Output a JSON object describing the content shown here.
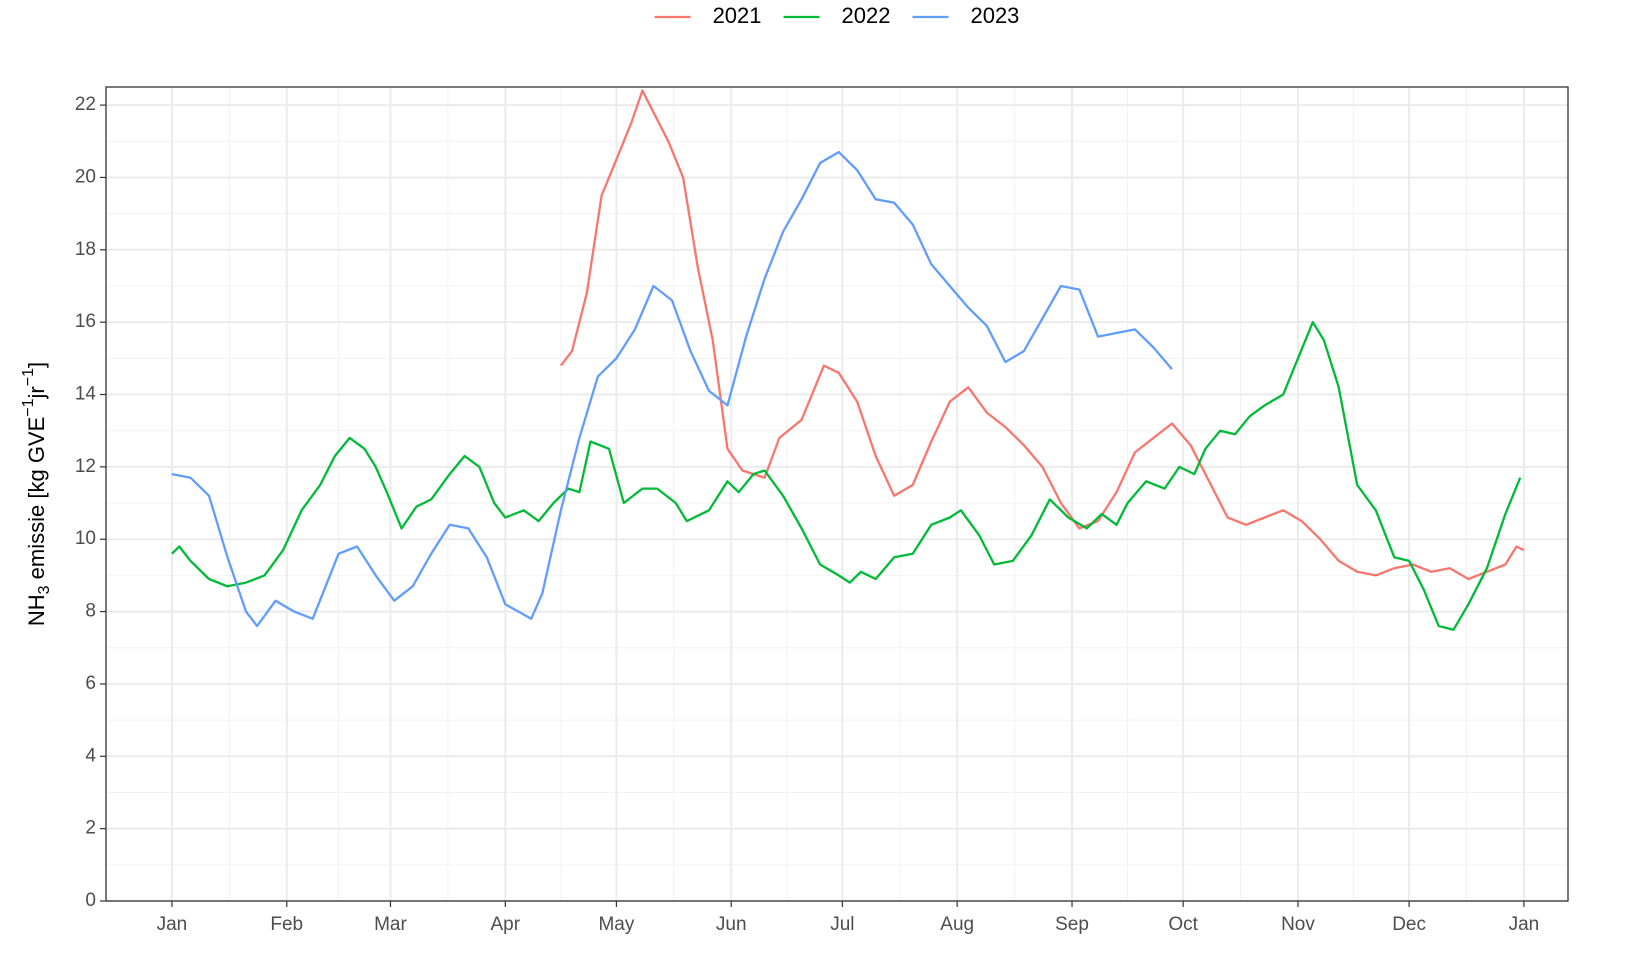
{
  "chart_data": {
    "type": "line",
    "y_label_parts": [
      "NH",
      "3",
      " emissie [kg GVE",
      "−1",
      "jr",
      "−1",
      "]"
    ],
    "xlim": [
      -17.8,
      376.9
    ],
    "xticks": [
      {
        "value": 0,
        "label": "Jan"
      },
      {
        "value": 31,
        "label": "Feb"
      },
      {
        "value": 59,
        "label": "Mar"
      },
      {
        "value": 90,
        "label": "Apr"
      },
      {
        "value": 120,
        "label": "May"
      },
      {
        "value": 151,
        "label": "Jun"
      },
      {
        "value": 181,
        "label": "Jul"
      },
      {
        "value": 212,
        "label": "Aug"
      },
      {
        "value": 243,
        "label": "Sep"
      },
      {
        "value": 273,
        "label": "Oct"
      },
      {
        "value": 304,
        "label": "Nov"
      },
      {
        "value": 334,
        "label": "Dec"
      },
      {
        "value": 365,
        "label": "Jan"
      }
    ],
    "ylim": [
      0,
      22.5
    ],
    "yticks": [
      0,
      2,
      4,
      6,
      8,
      10,
      12,
      14,
      16,
      18,
      20,
      22
    ],
    "grid": true,
    "legend": "top",
    "series": [
      {
        "name": "2021",
        "color": "#f8766d",
        "x": [
          105,
          108,
          112,
          116,
          120,
          124,
          127,
          130,
          134,
          138,
          142,
          146,
          150,
          154,
          160,
          164,
          170,
          176,
          180,
          185,
          190,
          195,
          200,
          205,
          210,
          215,
          220,
          225,
          230,
          235,
          240,
          245,
          250,
          255,
          260,
          265,
          270,
          275,
          280,
          285,
          290,
          295,
          300,
          305,
          310,
          315,
          320,
          325,
          330,
          335,
          340,
          345,
          350,
          355,
          360,
          363,
          365
        ],
        "values": [
          14.8,
          15.2,
          16.8,
          19.5,
          20.5,
          21.5,
          22.4,
          21.8,
          21.0,
          20.0,
          17.5,
          15.5,
          12.5,
          11.9,
          11.7,
          12.8,
          13.3,
          14.8,
          14.6,
          13.8,
          12.3,
          11.2,
          11.5,
          12.7,
          13.8,
          14.2,
          13.5,
          13.1,
          12.6,
          12.0,
          11.0,
          10.3,
          10.5,
          11.3,
          12.4,
          12.8,
          13.2,
          12.6,
          11.6,
          10.6,
          10.4,
          10.6,
          10.8,
          10.5,
          10.0,
          9.4,
          9.1,
          9.0,
          9.2,
          9.3,
          9.1,
          9.2,
          8.9,
          9.1,
          9.3,
          9.8,
          9.7
        ]
      },
      {
        "name": "2022",
        "color": "#00ba38",
        "x": [
          0,
          2,
          5,
          10,
          15,
          20,
          25,
          30,
          35,
          40,
          44,
          48,
          52,
          55,
          58,
          62,
          66,
          70,
          75,
          79,
          83,
          87,
          90,
          95,
          99,
          103,
          107,
          110,
          113,
          118,
          122,
          127,
          131,
          136,
          139,
          145,
          150,
          153,
          157,
          160,
          165,
          170,
          175,
          180,
          183,
          186,
          190,
          195,
          200,
          205,
          210,
          213,
          218,
          222,
          227,
          232,
          237,
          242,
          247,
          251,
          255,
          258,
          263,
          268,
          272,
          276,
          279,
          283,
          287,
          291,
          295,
          300,
          304,
          308,
          311,
          315,
          320,
          325,
          330,
          334,
          338,
          342,
          346,
          350,
          355,
          360,
          364
        ],
        "values": [
          9.6,
          9.8,
          9.4,
          8.9,
          8.7,
          8.8,
          9.0,
          9.7,
          10.8,
          11.5,
          12.3,
          12.8,
          12.5,
          12.0,
          11.3,
          10.3,
          10.9,
          11.1,
          11.8,
          12.3,
          12.0,
          11.0,
          10.6,
          10.8,
          10.5,
          11.0,
          11.4,
          11.3,
          12.7,
          12.5,
          11.0,
          11.4,
          11.4,
          11.0,
          10.5,
          10.8,
          11.6,
          11.3,
          11.8,
          11.9,
          11.2,
          10.3,
          9.3,
          9.0,
          8.8,
          9.1,
          8.9,
          9.5,
          9.6,
          10.4,
          10.6,
          10.8,
          10.1,
          9.3,
          9.4,
          10.1,
          11.1,
          10.6,
          10.3,
          10.7,
          10.4,
          11.0,
          11.6,
          11.4,
          12.0,
          11.8,
          12.5,
          13.0,
          12.9,
          13.4,
          13.7,
          14.0,
          15.0,
          16.0,
          15.5,
          14.2,
          11.5,
          10.8,
          9.5,
          9.4,
          8.6,
          7.6,
          7.5,
          8.2,
          9.2,
          10.7,
          11.7
        ]
      },
      {
        "name": "2023",
        "color": "#619cff",
        "x": [
          0,
          5,
          10,
          15,
          20,
          23,
          28,
          33,
          38,
          45,
          50,
          55,
          60,
          65,
          70,
          75,
          80,
          85,
          90,
          97,
          100,
          105,
          110,
          115,
          120,
          125,
          130,
          135,
          140,
          145,
          150,
          155,
          160,
          165,
          170,
          175,
          180,
          185,
          190,
          195,
          200,
          205,
          210,
          215,
          220,
          225,
          230,
          235,
          240,
          245,
          250,
          255,
          260,
          265,
          270
        ],
        "values": [
          11.8,
          11.7,
          11.2,
          9.5,
          8.0,
          7.6,
          8.3,
          8.0,
          7.8,
          9.6,
          9.8,
          9.0,
          8.3,
          8.7,
          9.6,
          10.4,
          10.3,
          9.5,
          8.2,
          7.8,
          8.5,
          10.8,
          12.8,
          14.5,
          15.0,
          15.8,
          17.0,
          16.6,
          15.2,
          14.1,
          13.7,
          15.6,
          17.2,
          18.5,
          19.4,
          20.4,
          20.7,
          20.2,
          19.4,
          19.3,
          18.7,
          17.6,
          17.0,
          16.4,
          15.9,
          14.9,
          15.2,
          16.1,
          17.0,
          16.9,
          15.6,
          15.7,
          15.8,
          15.3,
          14.7
        ]
      }
    ]
  }
}
